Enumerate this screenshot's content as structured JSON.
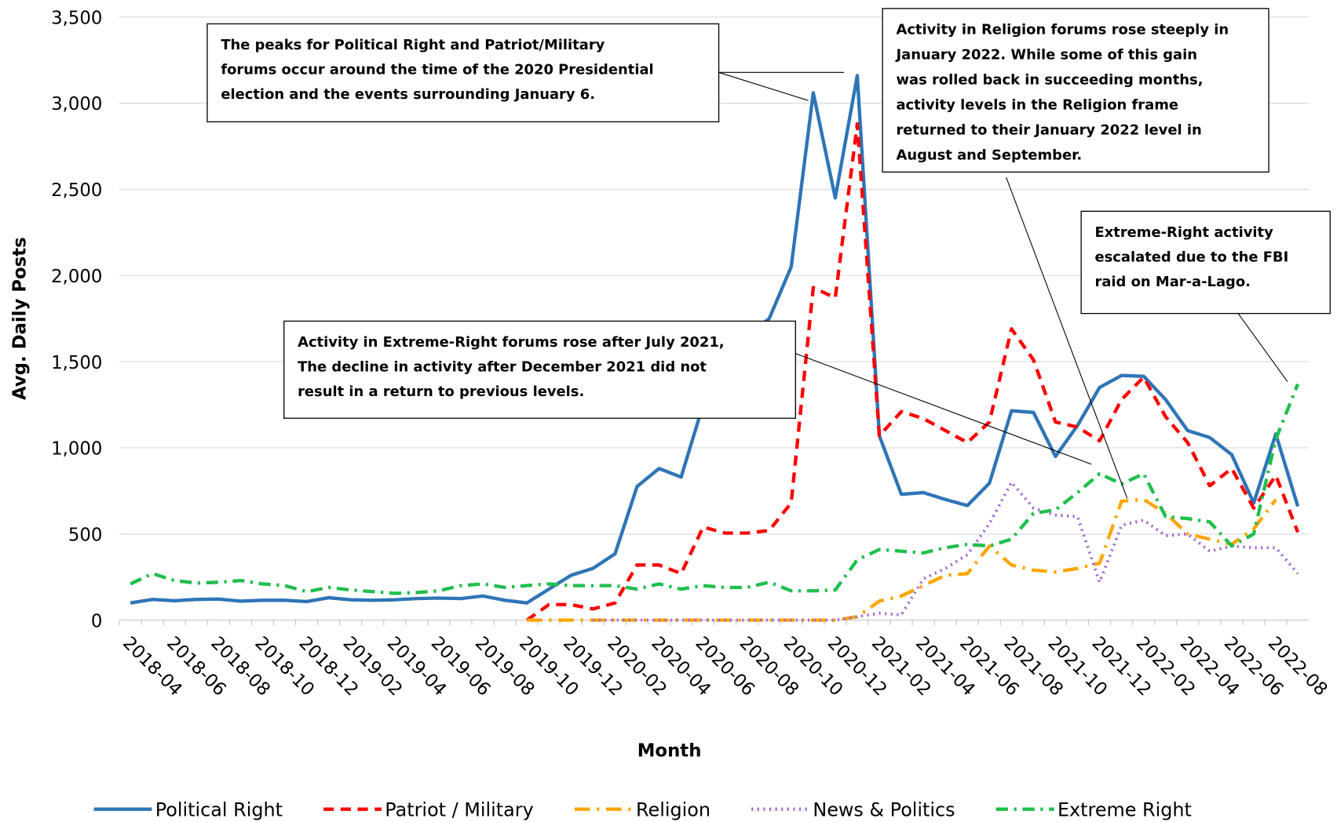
{
  "chart_data": {
    "type": "line",
    "y_label": "Avg. Daily Posts",
    "x_label": "Month",
    "categories": [
      "2018-04",
      null,
      "2018-06",
      null,
      "2018-08",
      null,
      "2018-10",
      null,
      "2018-12",
      null,
      "2019-02",
      null,
      "2019-04",
      null,
      "2019-06",
      null,
      "2019-08",
      null,
      "2019-10",
      null,
      "2019-12",
      null,
      "2020-02",
      null,
      "2020-04",
      null,
      "2020-06",
      null,
      "2020-08",
      null,
      "2020-10",
      null,
      "2020-12",
      null,
      "2021-02",
      null,
      "2021-04",
      null,
      "2021-06",
      null,
      "2021-08",
      null,
      "2021-10",
      null,
      "2021-12",
      null,
      "2022-02",
      null,
      "2022-04",
      null,
      "2022-06",
      null,
      "2022-08",
      null
    ],
    "ylim": [
      0,
      3500
    ],
    "yticks": [
      0,
      500,
      {
        "value": 1000,
        "label": "1,000"
      },
      {
        "value": 1500,
        "label": "1,500"
      },
      {
        "value": 2000,
        "label": "2,000"
      },
      {
        "value": 2500,
        "label": "2,500"
      },
      {
        "value": 3000,
        "label": "3,000"
      },
      {
        "value": 3500,
        "label": "3,500"
      }
    ],
    "grid": true,
    "legend": "bottom",
    "series": [
      {
        "name": "Political Right",
        "color": "#2e75b6",
        "dash": "solid",
        "values": [
          100,
          120,
          112,
          120,
          122,
          110,
          115,
          115,
          108,
          130,
          118,
          115,
          118,
          125,
          128,
          125,
          140,
          115,
          100,
          180,
          260,
          300,
          385,
          775,
          880,
          830,
          1250,
          1500,
          1650,
          1750,
          2050,
          3060,
          2450,
          3160,
          1070,
          730,
          740,
          700,
          665,
          795,
          1215,
          1205,
          950,
          1130,
          1350,
          1420,
          1415,
          1280,
          1100,
          1060,
          960,
          680,
          1080,
          660
        ]
      },
      {
        "name": "Patriot / Military",
        "color": "#ff0000",
        "dash": "dash",
        "values": [
          null,
          null,
          null,
          null,
          null,
          null,
          null,
          null,
          null,
          null,
          null,
          null,
          null,
          null,
          null,
          null,
          null,
          null,
          0,
          90,
          90,
          65,
          100,
          320,
          320,
          270,
          540,
          505,
          505,
          520,
          680,
          1930,
          1870,
          2880,
          1070,
          1210,
          1170,
          1100,
          1030,
          1150,
          1690,
          1510,
          1150,
          1120,
          1040,
          1280,
          1410,
          1180,
          1030,
          780,
          880,
          650,
          840,
          510
        ]
      },
      {
        "name": "Religion",
        "color": "#ffa500",
        "dash": "longdashdot",
        "values": [
          null,
          null,
          null,
          null,
          null,
          null,
          null,
          null,
          null,
          null,
          null,
          null,
          null,
          null,
          null,
          null,
          null,
          null,
          0,
          0,
          0,
          0,
          0,
          0,
          0,
          0,
          0,
          0,
          0,
          0,
          0,
          0,
          0,
          20,
          110,
          140,
          200,
          260,
          270,
          430,
          320,
          290,
          280,
          300,
          330,
          690,
          700,
          620,
          500,
          470,
          440,
          530,
          700,
          null
        ]
      },
      {
        "name": "News & Politics",
        "color": "#a066d3",
        "dash": "dot",
        "values": [
          null,
          null,
          null,
          null,
          null,
          null,
          null,
          null,
          null,
          null,
          null,
          null,
          null,
          null,
          null,
          null,
          null,
          null,
          null,
          null,
          null,
          0,
          0,
          0,
          0,
          0,
          0,
          0,
          0,
          0,
          0,
          0,
          0,
          20,
          40,
          30,
          240,
          300,
          380,
          560,
          800,
          650,
          610,
          600,
          220,
          550,
          580,
          490,
          500,
          400,
          430,
          420,
          420,
          270
        ]
      },
      {
        "name": "Extreme Right",
        "color": "#1fbf4c",
        "dash": "dashdot",
        "values": [
          210,
          270,
          230,
          215,
          220,
          230,
          210,
          200,
          165,
          190,
          175,
          165,
          155,
          160,
          170,
          200,
          210,
          190,
          200,
          210,
          200,
          200,
          200,
          180,
          210,
          180,
          200,
          190,
          190,
          220,
          170,
          170,
          175,
          350,
          410,
          400,
          390,
          420,
          440,
          430,
          470,
          620,
          640,
          740,
          850,
          790,
          850,
          600,
          590,
          570,
          430,
          500,
          1050,
          1370
        ]
      }
    ],
    "annotations": [
      {
        "lines": [
          "The peaks for Political Right and Patriot/Military",
          "forums occur around the time of the 2020 Presidential",
          "election and the events surrounding January 6."
        ]
      },
      {
        "lines": [
          "Activity in Religion forums rose steeply in",
          "January 2022. While some of this gain",
          "was rolled back in succeeding months,",
          "activity levels in the Religion frame",
          "returned to their January 2022 level in",
          "August and September."
        ]
      },
      {
        "lines": [
          "Extreme-Right activity",
          "escalated due to the FBI",
          "raid on Mar-a-Lago."
        ]
      },
      {
        "lines": [
          "Activity in Extreme-Right forums rose after July 2021,",
          "The decline in activity after December 2021 did not",
          "result in a return to previous levels."
        ]
      }
    ]
  }
}
